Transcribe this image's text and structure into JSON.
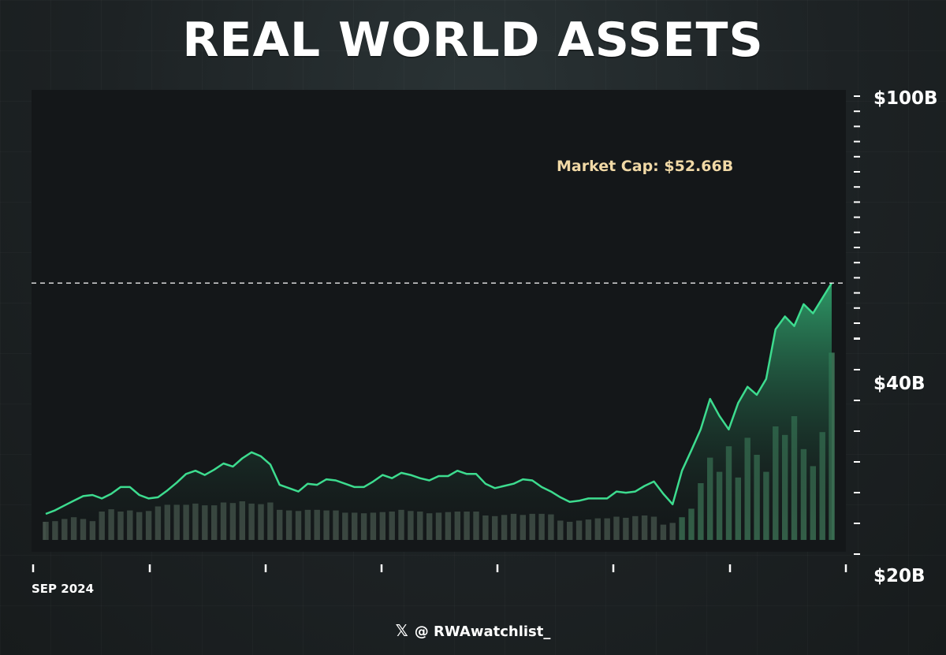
{
  "title": "REAL WORLD ASSETS",
  "footer": {
    "icon": "x-logo-icon",
    "symbol": "𝕏",
    "handle": "@ RWAwatchlist_"
  },
  "colors": {
    "line": "#3ddc8f",
    "area_top": "#2f9e6a",
    "area_bottom": "#141719",
    "volume": "#4a5a51",
    "volume_recent": "#3f7a5b",
    "annotation": "#f1d9a6"
  },
  "chart_data": {
    "type": "area",
    "title": "REAL WORLD ASSETS",
    "xlabel": "",
    "ylabel": "",
    "y_tick_labels": [
      "$100B",
      "$40B",
      "$20B"
    ],
    "x_tick_labels": [
      "SEP 2024"
    ],
    "ylim": [
      20,
      100
    ],
    "y_scale": "log",
    "grid": false,
    "annotation": {
      "label": "Market Cap: $52.66B",
      "value": 52.66
    },
    "series": [
      {
        "kind": "line",
        "values": [
          24.0,
          24.3,
          24.7,
          25.1,
          25.5,
          25.6,
          25.3,
          25.7,
          26.3,
          26.3,
          25.6,
          25.3,
          25.4,
          26.0,
          26.7,
          27.5,
          27.8,
          27.4,
          27.9,
          28.5,
          28.2,
          29.0,
          29.6,
          29.2,
          28.4,
          26.5,
          26.2,
          25.9,
          26.6,
          26.5,
          27.0,
          26.9,
          26.6,
          26.3,
          26.3,
          26.8,
          27.4,
          27.1,
          27.6,
          27.4,
          27.1,
          26.9,
          27.3,
          27.3,
          27.8,
          27.5,
          27.5,
          26.6,
          26.2,
          26.4,
          26.6,
          27.0,
          26.9,
          26.3,
          25.9,
          25.4,
          25.0,
          25.1,
          25.3,
          25.3,
          25.3,
          25.9,
          25.8,
          25.9,
          26.4,
          26.8,
          25.7,
          24.8,
          27.8,
          29.8,
          32.0,
          35.5,
          33.5,
          32.0,
          35.0,
          37.0,
          36.0,
          38.0,
          45.0,
          47.0,
          45.5,
          49.0,
          47.5,
          50.0,
          52.66
        ]
      },
      {
        "kind": "volume",
        "values": [
          3.2,
          3.3,
          3.7,
          4.0,
          3.7,
          3.3,
          5.0,
          5.4,
          5.0,
          5.2,
          4.9,
          5.1,
          5.9,
          6.2,
          6.2,
          6.2,
          6.4,
          6.1,
          6.1,
          6.6,
          6.5,
          6.8,
          6.4,
          6.3,
          6.6,
          5.3,
          5.2,
          5.1,
          5.3,
          5.3,
          5.2,
          5.2,
          4.8,
          4.8,
          4.7,
          4.8,
          4.9,
          5.0,
          5.3,
          5.1,
          5.0,
          4.7,
          4.8,
          4.9,
          5.0,
          5.0,
          5.0,
          4.3,
          4.2,
          4.4,
          4.6,
          4.4,
          4.6,
          4.6,
          4.5,
          3.4,
          3.2,
          3.4,
          3.6,
          3.8,
          3.8,
          4.1,
          3.9,
          4.2,
          4.3,
          4.1,
          2.7,
          3.0,
          4.0,
          5.5,
          10.0,
          14.5,
          12.0,
          16.5,
          11.0,
          18.0,
          15.0,
          12.0,
          20.0,
          18.5,
          21.8,
          16.0,
          13.0,
          19.0,
          33.0
        ]
      }
    ]
  }
}
